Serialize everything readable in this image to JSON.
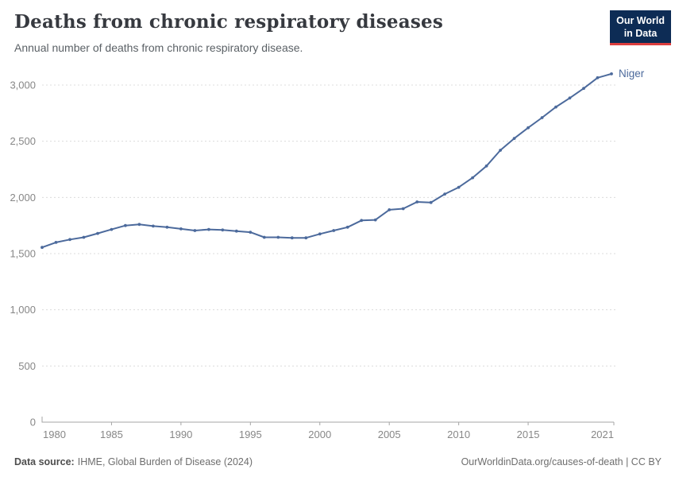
{
  "header": {
    "title": "Deaths from chronic respiratory diseases",
    "subtitle": "Annual number of deaths from chronic respiratory disease.",
    "logo": {
      "line1": "Our World",
      "line2": "in Data",
      "bg_color": "#0d2c55",
      "accent_color": "#dc3e3e"
    }
  },
  "footer": {
    "source_label": "Data source:",
    "source_text": "IHME, Global Burden of Disease (2024)",
    "credit": "OurWorldinData.org/causes-of-death | CC BY"
  },
  "chart_data": {
    "type": "line",
    "title": "Deaths from chronic respiratory diseases",
    "subtitle": "Annual number of deaths from chronic respiratory disease.",
    "xlabel": "",
    "ylabel": "",
    "grid": "horizontal-dashed",
    "legend_position": "end-of-line-label",
    "xlim": [
      1980,
      2021
    ],
    "ylim": [
      0,
      3000
    ],
    "x_ticks": [
      {
        "value": 1980,
        "label": "1980"
      },
      {
        "value": 1985,
        "label": "1985"
      },
      {
        "value": 1990,
        "label": "1990"
      },
      {
        "value": 1995,
        "label": "1995"
      },
      {
        "value": 2000,
        "label": "2000"
      },
      {
        "value": 2005,
        "label": "2005"
      },
      {
        "value": 2010,
        "label": "2010"
      },
      {
        "value": 2015,
        "label": "2015"
      },
      {
        "value": 2021,
        "label": "2021"
      }
    ],
    "y_ticks": [
      {
        "value": 0,
        "label": "0"
      },
      {
        "value": 500,
        "label": "500"
      },
      {
        "value": 1000,
        "label": "1,000"
      },
      {
        "value": 1500,
        "label": "1,500"
      },
      {
        "value": 2000,
        "label": "2,000"
      },
      {
        "value": 2500,
        "label": "2,500"
      },
      {
        "value": 3000,
        "label": "3,000"
      }
    ],
    "series": [
      {
        "name": "Niger",
        "color": "#4c6a9c",
        "x": [
          1980,
          1981,
          1982,
          1983,
          1984,
          1985,
          1986,
          1987,
          1988,
          1989,
          1990,
          1991,
          1992,
          1993,
          1994,
          1995,
          1996,
          1997,
          1998,
          1999,
          2000,
          2001,
          2002,
          2003,
          2004,
          2005,
          2006,
          2007,
          2008,
          2009,
          2010,
          2011,
          2012,
          2013,
          2014,
          2015,
          2016,
          2017,
          2018,
          2019,
          2020,
          2021
        ],
        "values": [
          1555,
          1600,
          1625,
          1645,
          1680,
          1715,
          1750,
          1760,
          1745,
          1735,
          1720,
          1705,
          1715,
          1710,
          1700,
          1690,
          1645,
          1645,
          1640,
          1640,
          1675,
          1705,
          1735,
          1795,
          1800,
          1890,
          1900,
          1960,
          1955,
          2030,
          2090,
          2175,
          2280,
          2420,
          2525,
          2620,
          2710,
          2805,
          2885,
          2970,
          3065,
          3100
        ]
      }
    ],
    "colors": {
      "gridline": "#dcdcdc",
      "axis": "#a5a5a5",
      "tick_label": "#878787"
    }
  }
}
